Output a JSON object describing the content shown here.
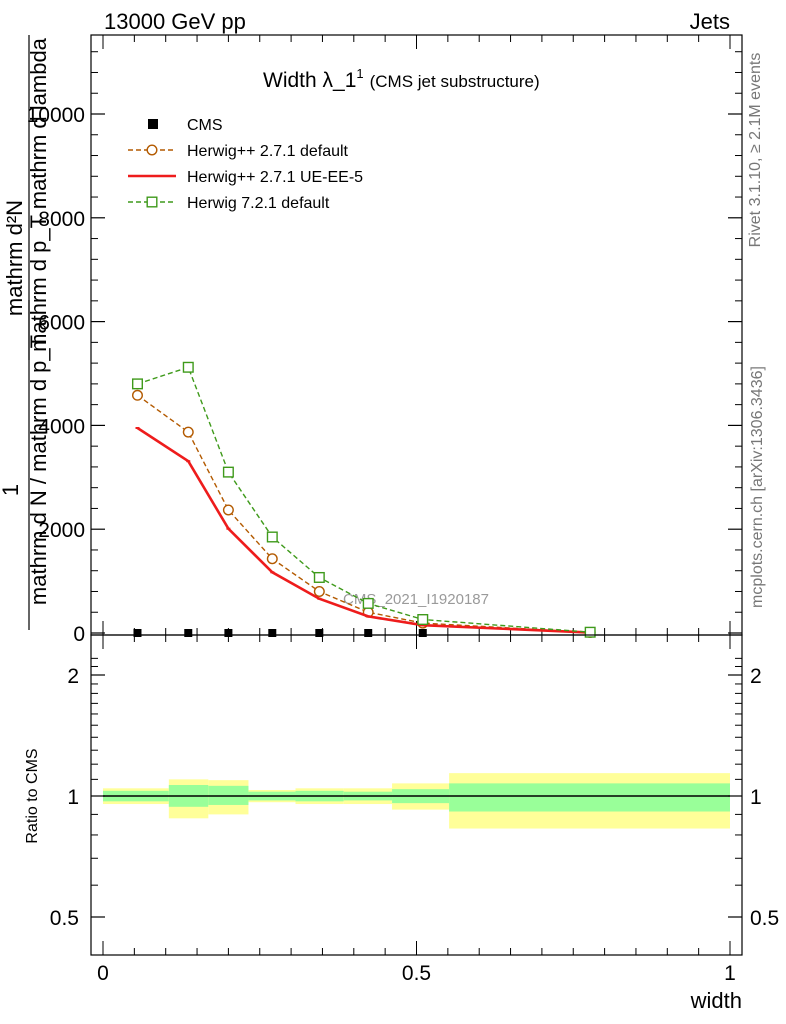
{
  "header": {
    "left": "13000 GeV pp",
    "right": "Jets"
  },
  "title": {
    "main": "Width λ_1",
    "sup": "1",
    "paren": "(CMS jet substructure)"
  },
  "ylabel_main": {
    "numerator": "mathrm d²N",
    "denominator": "mathrm d p_T mathrm d lambda",
    "one": "1",
    "prefactor": "mathrm d N / mathrm d p_T"
  },
  "side_labels": {
    "rivet": "Rivet 3.1.10, ≥ 2.1M events",
    "mcplots": "mcplots.cern.ch [arXiv:1306.3436]"
  },
  "watermark": "CMS_2021_I1920187",
  "ratio_label": "Ratio to CMS",
  "xlabel": "width",
  "chart_data": [
    {
      "type": "line",
      "title": "Width λ_1¹ (CMS jet substructure)",
      "xlim": [
        0,
        1
      ],
      "ylim": [
        0,
        11500
      ],
      "y_ticks": [
        0,
        2000,
        4000,
        6000,
        8000,
        10000
      ],
      "y_tick_labels": [
        "0",
        "2000",
        "4000",
        "6000",
        "8000",
        "10000"
      ],
      "legend_position": "top-left",
      "series": [
        {
          "name": "CMS",
          "marker": "filled-square",
          "color": "#000000",
          "x": [
            0.055,
            0.136,
            0.2,
            0.27,
            0.345,
            0.423,
            0.51,
            0.777
          ],
          "y": [
            0,
            0,
            0,
            0,
            0,
            0,
            0,
            0
          ]
        },
        {
          "name": "Herwig++ 2.7.1 default",
          "marker": "open-circle",
          "line": "dashed",
          "color": "#b35a00",
          "x": [
            0.055,
            0.136,
            0.2,
            0.27,
            0.345,
            0.423,
            0.51,
            0.777
          ],
          "y": [
            4580,
            3870,
            2370,
            1430,
            800,
            400,
            190,
            10
          ]
        },
        {
          "name": "Herwig++ 2.7.1 UE-EE-5",
          "marker": "none",
          "line": "solid",
          "color": "#ee1c1c",
          "x": [
            0.055,
            0.136,
            0.2,
            0.27,
            0.345,
            0.423,
            0.51,
            0.777
          ],
          "y": [
            3950,
            3310,
            2010,
            1170,
            660,
            320,
            150,
            8
          ]
        },
        {
          "name": "Herwig 7.2.1 default",
          "marker": "open-square",
          "line": "dashed",
          "color": "#3f9a1b",
          "x": [
            0.055,
            0.136,
            0.2,
            0.27,
            0.345,
            0.423,
            0.51,
            0.777
          ],
          "y": [
            4800,
            5120,
            3100,
            1850,
            1070,
            570,
            260,
            15
          ]
        }
      ]
    },
    {
      "type": "area",
      "ylabel": "Ratio to CMS",
      "xlabel": "width",
      "xlim": [
        0,
        1
      ],
      "ylim": [
        0.35,
        2.3
      ],
      "x_ticks": [
        0,
        0.5,
        1
      ],
      "x_tick_labels": [
        "0",
        "0.5",
        "1"
      ],
      "y_ticks": [
        0.5,
        1,
        2
      ],
      "y_tick_labels": [
        "0.5",
        "1",
        "2"
      ],
      "bins": [
        {
          "x0": 0.0,
          "x1": 0.105,
          "stat_lo": 0.97,
          "stat_hi": 1.03,
          "tot_lo": 0.955,
          "tot_hi": 1.045
        },
        {
          "x0": 0.105,
          "x1": 0.168,
          "stat_lo": 0.94,
          "stat_hi": 1.065,
          "tot_lo": 0.88,
          "tot_hi": 1.1
        },
        {
          "x0": 0.168,
          "x1": 0.232,
          "stat_lo": 0.95,
          "stat_hi": 1.06,
          "tot_lo": 0.9,
          "tot_hi": 1.095
        },
        {
          "x0": 0.232,
          "x1": 0.307,
          "stat_lo": 0.975,
          "stat_hi": 1.025,
          "tot_lo": 0.965,
          "tot_hi": 1.035
        },
        {
          "x0": 0.307,
          "x1": 0.384,
          "stat_lo": 0.97,
          "stat_hi": 1.03,
          "tot_lo": 0.955,
          "tot_hi": 1.045
        },
        {
          "x0": 0.384,
          "x1": 0.461,
          "stat_lo": 0.975,
          "stat_hi": 1.025,
          "tot_lo": 0.955,
          "tot_hi": 1.045
        },
        {
          "x0": 0.461,
          "x1": 0.552,
          "stat_lo": 0.96,
          "stat_hi": 1.04,
          "tot_lo": 0.925,
          "tot_hi": 1.075
        },
        {
          "x0": 0.552,
          "x1": 1.0,
          "stat_lo": 0.915,
          "stat_hi": 1.075,
          "tot_lo": 0.83,
          "tot_hi": 1.14
        }
      ],
      "reference_y": 1,
      "colors": {
        "stat": "#99ff99",
        "total": "#ffff99",
        "reference": "#000000"
      }
    }
  ]
}
